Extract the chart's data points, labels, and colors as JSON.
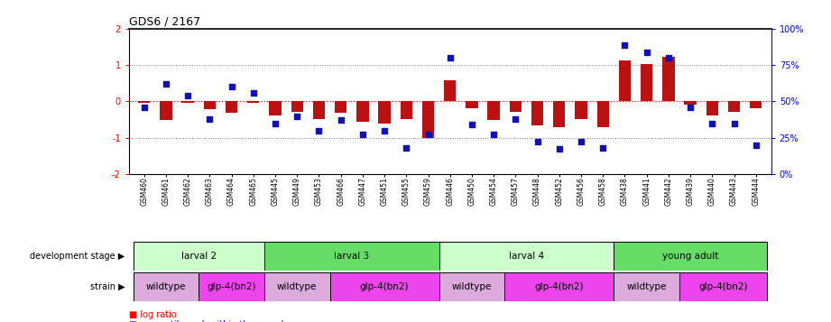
{
  "title": "GDS6 / 2167",
  "samples": [
    "GSM460",
    "GSM461",
    "GSM462",
    "GSM463",
    "GSM464",
    "GSM465",
    "GSM445",
    "GSM449",
    "GSM453",
    "GSM466",
    "GSM447",
    "GSM451",
    "GSM455",
    "GSM459",
    "GSM446",
    "GSM450",
    "GSM454",
    "GSM457",
    "GSM448",
    "GSM452",
    "GSM456",
    "GSM458",
    "GSM438",
    "GSM441",
    "GSM442",
    "GSM439",
    "GSM440",
    "GSM443",
    "GSM444"
  ],
  "log_ratio": [
    -0.04,
    -0.52,
    -0.03,
    -0.22,
    -0.3,
    -0.04,
    -0.38,
    -0.28,
    -0.48,
    -0.32,
    -0.55,
    -0.62,
    -0.48,
    -1.02,
    0.58,
    -0.18,
    -0.52,
    -0.28,
    -0.65,
    -0.7,
    -0.48,
    -0.7,
    1.12,
    1.02,
    1.22,
    -0.08,
    -0.38,
    -0.28,
    -0.18
  ],
  "percentile": [
    46,
    62,
    54,
    38,
    60,
    56,
    35,
    40,
    30,
    37,
    27,
    30,
    18,
    27,
    80,
    34,
    27,
    38,
    22,
    17,
    22,
    18,
    89,
    84,
    80,
    46,
    35,
    35,
    20
  ],
  "dev_stage_groups": [
    {
      "label": "larval 2",
      "start": 0,
      "end": 6,
      "color": "#ccffcc"
    },
    {
      "label": "larval 3",
      "start": 6,
      "end": 14,
      "color": "#66dd66"
    },
    {
      "label": "larval 4",
      "start": 14,
      "end": 22,
      "color": "#ccffcc"
    },
    {
      "label": "young adult",
      "start": 22,
      "end": 29,
      "color": "#66dd66"
    }
  ],
  "strain_groups": [
    {
      "label": "wildtype",
      "start": 0,
      "end": 3,
      "color": "#ddaadd"
    },
    {
      "label": "glp-4(bn2)",
      "start": 3,
      "end": 6,
      "color": "#ee44ee"
    },
    {
      "label": "wildtype",
      "start": 6,
      "end": 9,
      "color": "#ddaadd"
    },
    {
      "label": "glp-4(bn2)",
      "start": 9,
      "end": 14,
      "color": "#ee44ee"
    },
    {
      "label": "wildtype",
      "start": 14,
      "end": 17,
      "color": "#ddaadd"
    },
    {
      "label": "glp-4(bn2)",
      "start": 17,
      "end": 22,
      "color": "#ee44ee"
    },
    {
      "label": "wildtype",
      "start": 22,
      "end": 25,
      "color": "#ddaadd"
    },
    {
      "label": "glp-4(bn2)",
      "start": 25,
      "end": 29,
      "color": "#ee44ee"
    }
  ],
  "bar_color": "#BB1111",
  "scatter_color": "#1111BB",
  "ylim_left": [
    -2,
    2
  ],
  "ylim_right": [
    0,
    100
  ],
  "yticks_left": [
    -2,
    -1,
    0,
    1,
    2
  ],
  "yticks_right": [
    0,
    25,
    50,
    75,
    100
  ],
  "dev_stage_label": "development stage",
  "strain_label": "strain"
}
